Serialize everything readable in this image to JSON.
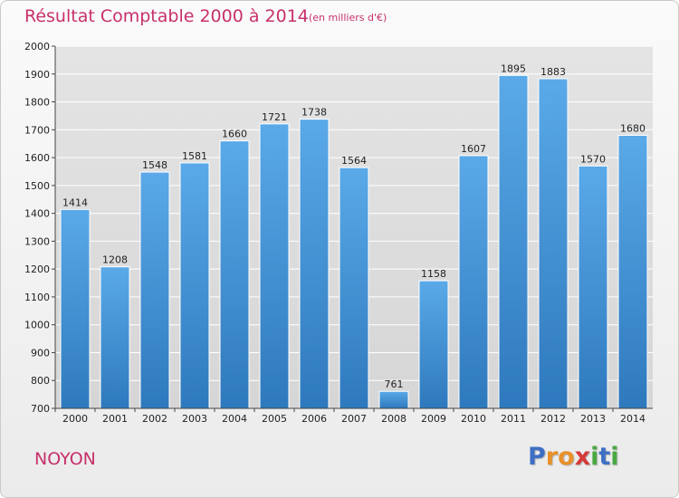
{
  "header": {
    "title": "Résultat Comptable 2000 à 2014",
    "subtitle": "(en milliers d'€)"
  },
  "footer": {
    "place": "NOYON",
    "logo_letters": [
      {
        "ch": "P",
        "color": "#3d6fc4"
      },
      {
        "ch": "r",
        "color": "#e8912a"
      },
      {
        "ch": "o",
        "color": "#e8912a"
      },
      {
        "ch": "x",
        "color": "#d63a3a"
      },
      {
        "ch": "i",
        "color": "#4aa843"
      },
      {
        "ch": "t",
        "color": "#3d6fc4"
      },
      {
        "ch": "i",
        "color": "#4aa843"
      }
    ]
  },
  "chart_data": {
    "type": "bar",
    "title": "Résultat Comptable 2000 à 2014",
    "subtitle": "(en milliers d'€)",
    "categories": [
      "2000",
      "2001",
      "2002",
      "2003",
      "2004",
      "2005",
      "2006",
      "2007",
      "2008",
      "2009",
      "2010",
      "2011",
      "2012",
      "2013",
      "2014"
    ],
    "values": [
      1414,
      1208,
      1548,
      1581,
      1660,
      1721,
      1738,
      1564,
      761,
      1158,
      1607,
      1895,
      1883,
      1570,
      1680
    ],
    "ylim": [
      700,
      2000
    ],
    "yticks": [
      700,
      800,
      900,
      1000,
      1100,
      1200,
      1300,
      1400,
      1500,
      1600,
      1700,
      1800,
      1900,
      2000
    ],
    "grid": true,
    "bar_color": "#3d8fd6"
  }
}
